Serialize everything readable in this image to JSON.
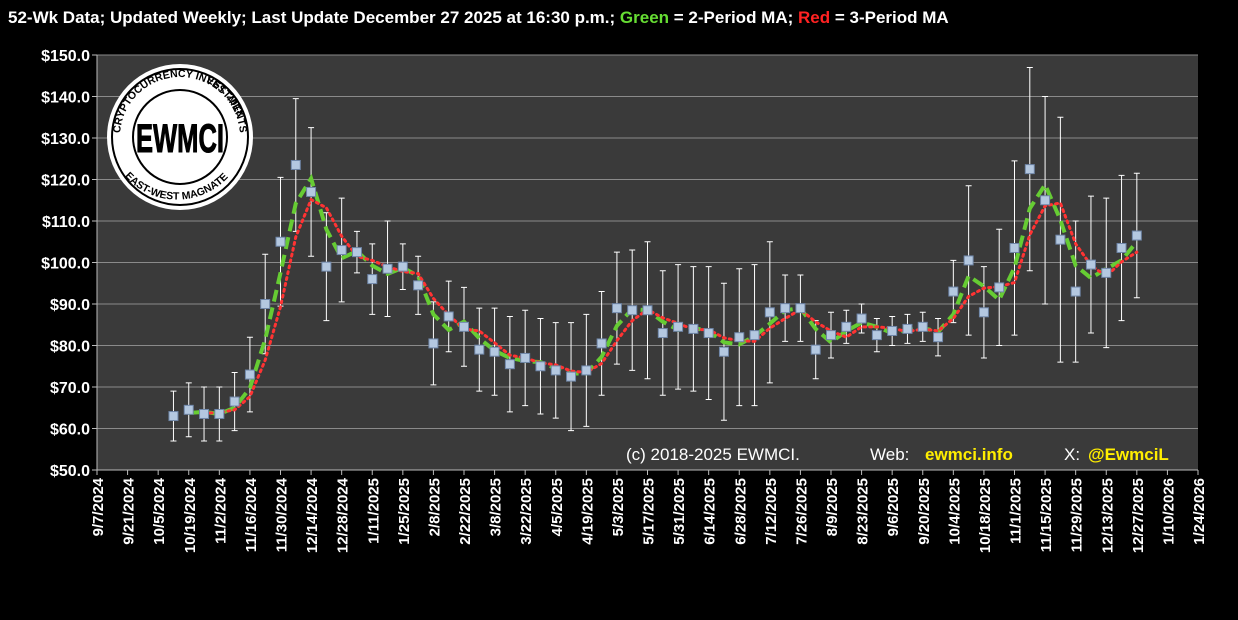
{
  "chart_data": {
    "type": "errorbar-line",
    "title_parts": [
      {
        "text": "52-Wk Data; Updated Weekly; Last Update December 27 2025 at 16:30 p.m.; ",
        "color": "#ffffff"
      },
      {
        "text": "Green",
        "color": "#66dd33"
      },
      {
        "text": " = 2-Period MA; ",
        "color": "#ffffff"
      },
      {
        "text": "Red",
        "color": "#ff2222"
      },
      {
        "text": " = 3-Period MA",
        "color": "#ffffff"
      }
    ],
    "x": [
      "10/12/2024",
      "10/19/2024",
      "10/26/2024",
      "11/2/2024",
      "11/9/2024",
      "11/16/2024",
      "11/23/2024",
      "11/30/2024",
      "12/7/2024",
      "12/14/2024",
      "12/21/2024",
      "12/28/2024",
      "1/4/2025",
      "1/11/2025",
      "1/18/2025",
      "1/25/2025",
      "2/1/2025",
      "2/8/2025",
      "2/15/2025",
      "2/22/2025",
      "3/1/2025",
      "3/8/2025",
      "3/15/2025",
      "3/22/2025",
      "3/29/2025",
      "4/5/2025",
      "4/12/2025",
      "4/19/2025",
      "4/26/2025",
      "5/3/2025",
      "5/10/2025",
      "5/17/2025",
      "5/24/2025",
      "5/31/2025",
      "6/7/2025",
      "6/14/2025",
      "6/21/2025",
      "6/28/2025",
      "7/5/2025",
      "7/12/2025",
      "7/19/2025",
      "7/26/2025",
      "8/2/2025",
      "8/9/2025",
      "8/16/2025",
      "8/23/2025",
      "8/30/2025",
      "9/6/2025",
      "9/13/2025",
      "9/20/2025",
      "9/27/2025",
      "10/4/2025",
      "10/11/2025",
      "10/18/2025",
      "10/25/2025",
      "11/1/2025",
      "11/8/2025",
      "11/15/2025",
      "11/22/2025",
      "11/29/2025",
      "12/6/2025",
      "12/13/2025",
      "12/20/2025",
      "12/27/2025"
    ],
    "values": [
      63,
      64.5,
      63.5,
      63.5,
      66.5,
      73,
      90,
      105,
      123.5,
      117,
      99,
      103,
      102.5,
      96,
      98.5,
      99,
      94.5,
      80.5,
      87,
      84.5,
      79,
      78.5,
      75.5,
      77,
      75,
      74,
      72.5,
      74,
      80.5,
      89,
      88.5,
      88.5,
      83,
      84.5,
      84,
      83,
      78.5,
      82,
      82.5,
      88,
      89,
      89,
      79,
      82.5,
      84.5,
      86.5,
      82.5,
      83.5,
      84,
      84.5,
      82,
      93,
      100.5,
      88,
      94,
      103.5,
      122.5,
      115,
      105.5,
      93,
      99.5,
      97.5,
      103.5,
      106.5
    ],
    "errors": [
      6,
      6.5,
      6.5,
      6.5,
      7,
      9,
      12,
      15.5,
      16,
      15.5,
      13,
      12.5,
      5,
      8.5,
      11.5,
      5.5,
      7,
      10,
      8.5,
      9.5,
      10,
      10.5,
      11.5,
      11.5,
      11.5,
      11.5,
      13,
      13.5,
      12.5,
      13.5,
      14.5,
      16.5,
      15,
      15,
      15,
      16,
      16.5,
      16.5,
      17,
      17,
      8,
      8,
      7,
      5.5,
      4,
      3.5,
      4,
      3.5,
      3.5,
      3.5,
      4.5,
      7.5,
      18,
      11,
      14,
      21,
      24.5,
      25,
      29.5,
      17,
      16.5,
      18,
      17.5,
      15
    ],
    "marker_color": "#b4c8e0",
    "error_color": "#ffffff",
    "moving_averages": [
      {
        "window": 2,
        "color": "#66cc33"
      },
      {
        "window": 3,
        "color": "#ff3333"
      }
    ],
    "ylim": [
      50,
      150
    ],
    "yticks": [
      {
        "value": 50,
        "label": "$50.0"
      },
      {
        "value": 60,
        "label": "$60.0"
      },
      {
        "value": 70,
        "label": "$70.0"
      },
      {
        "value": 80,
        "label": "$80.0"
      },
      {
        "value": 90,
        "label": "$90.0"
      },
      {
        "value": 100,
        "label": "$100.0"
      },
      {
        "value": 110,
        "label": "$110.0"
      },
      {
        "value": 120,
        "label": "$120.0"
      },
      {
        "value": 130,
        "label": "$130.0"
      },
      {
        "value": 140,
        "label": "$140.0"
      },
      {
        "value": 150,
        "label": "$150.0"
      }
    ],
    "xlim": [
      "9/7/2024",
      "1/24/2026"
    ],
    "xticks": [
      "9/7/2024",
      "9/21/2024",
      "10/5/2024",
      "10/19/2024",
      "11/2/2024",
      "11/16/2024",
      "11/30/2024",
      "12/14/2024",
      "12/28/2024",
      "1/11/2025",
      "1/25/2025",
      "2/8/2025",
      "2/22/2025",
      "3/8/2025",
      "3/22/2025",
      "4/5/2025",
      "4/19/2025",
      "5/3/2025",
      "5/17/2025",
      "5/31/2025",
      "6/14/2025",
      "6/28/2025",
      "7/12/2025",
      "7/26/2025",
      "8/9/2025",
      "8/23/2025",
      "9/6/2025",
      "9/20/2025",
      "10/4/2025",
      "10/18/2025",
      "11/1/2025",
      "11/15/2025",
      "11/29/2025",
      "12/13/2025",
      "12/27/2025",
      "1/10/2026",
      "1/24/2026"
    ],
    "grid": true,
    "footer": {
      "copyright": "(c) 2018-2025 EWMCI.",
      "web_label": "Web:",
      "web": "ewmci.info",
      "x_label": "X:",
      "x_handle": "@EwmciL"
    },
    "logo": {
      "center": "EWMCI",
      "top": "CRYPTOCURRENCY INVESTMENTS",
      "right": "EST. 2018",
      "bottom": "EAST-WEST MAGNATE"
    }
  }
}
